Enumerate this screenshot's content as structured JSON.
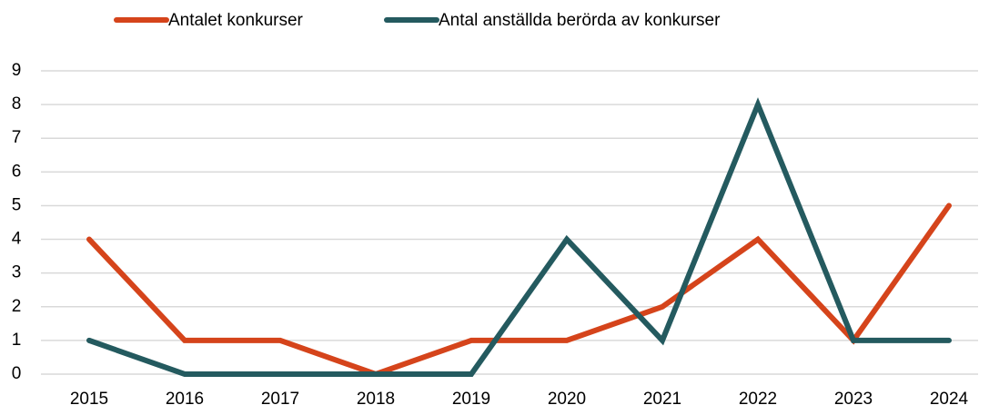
{
  "chart_data": {
    "type": "line",
    "categories": [
      "2015",
      "2016",
      "2017",
      "2018",
      "2019",
      "2020",
      "2021",
      "2022",
      "2023",
      "2024"
    ],
    "series": [
      {
        "name": "Antalet konkurser",
        "color": "#d5441b",
        "values": [
          4,
          1,
          1,
          0,
          1,
          1,
          2,
          4,
          1,
          5
        ]
      },
      {
        "name": "Antal anställda berörda av konkurser",
        "color": "#245a5f",
        "values": [
          1,
          0,
          0,
          0,
          0,
          4,
          1,
          8,
          1,
          1
        ]
      }
    ],
    "ylim": [
      0,
      9
    ],
    "yticks": [
      0,
      1,
      2,
      3,
      4,
      5,
      6,
      7,
      8,
      9
    ],
    "grid": true,
    "legend": "top"
  }
}
